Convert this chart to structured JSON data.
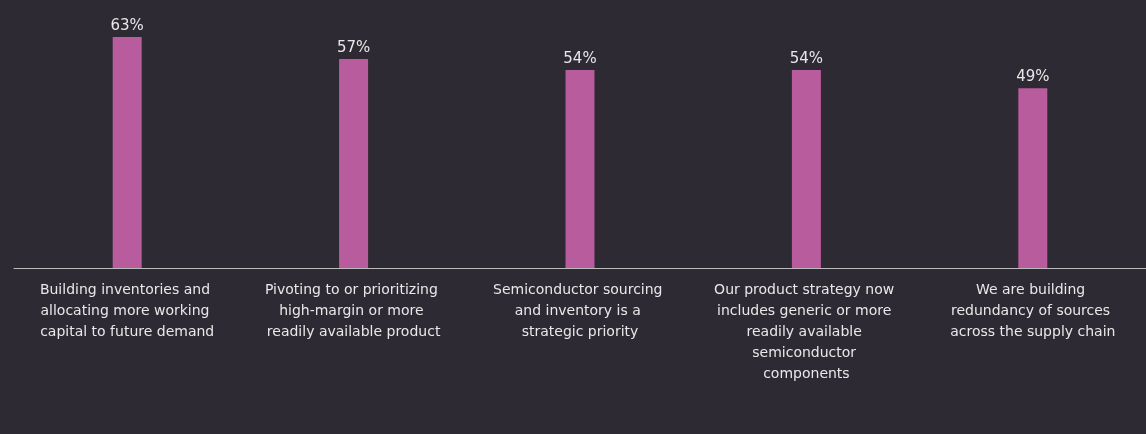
{
  "chart_data": {
    "type": "bar",
    "categories": [
      "Building inventories and allocating more working capital to future demand",
      "Pivoting to or prioritizing high-margin or more readily available product",
      "Semiconductor sourcing and inventory is a strategic priority",
      "Our product strategy now includes generic or more readily available semiconductor components",
      "We are building redundancy of sources across the supply chain"
    ],
    "values": [
      63,
      57,
      54,
      54,
      49
    ],
    "color": "#b85c9e",
    "value_labels": [
      "63%",
      "57%",
      "54%",
      "54%",
      "49%"
    ],
    "tick_labels": "x"
  }
}
